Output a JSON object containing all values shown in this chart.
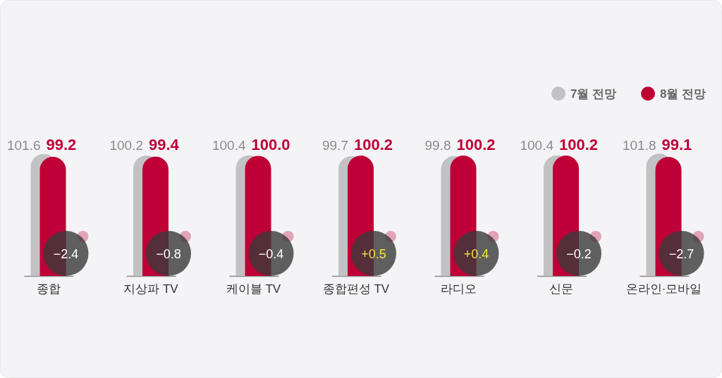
{
  "chart_data": {
    "type": "bar",
    "categories": [
      "종합",
      "지상파 TV",
      "케이블 TV",
      "종합편성 TV",
      "라디오",
      "신문",
      "온라인·모바일"
    ],
    "series": [
      {
        "name": "7월 전망",
        "color": "#c2c2c4",
        "values": [
          101.6,
          100.2,
          100.4,
          99.7,
          99.8,
          100.4,
          101.8
        ],
        "value_labels": [
          "101.6",
          "100.2",
          "100.4",
          "99.7",
          "99.8",
          "100.4",
          "101.8"
        ]
      },
      {
        "name": "8월 전망",
        "color": "#bf0036",
        "values": [
          99.2,
          99.4,
          100.0,
          100.2,
          100.2,
          100.2,
          99.1
        ],
        "value_labels": [
          "99.2",
          "99.4",
          "100.0",
          "100.2",
          "100.2",
          "100.2",
          "99.1"
        ]
      }
    ],
    "ylim": [
      0,
      102
    ],
    "tick_labels": "x",
    "legend": "top right",
    "annotations": [
      "−2.4",
      "−0.8",
      "−0.4",
      "+0.5",
      "+0.4",
      "−0.2",
      "−2.7"
    ]
  }
}
